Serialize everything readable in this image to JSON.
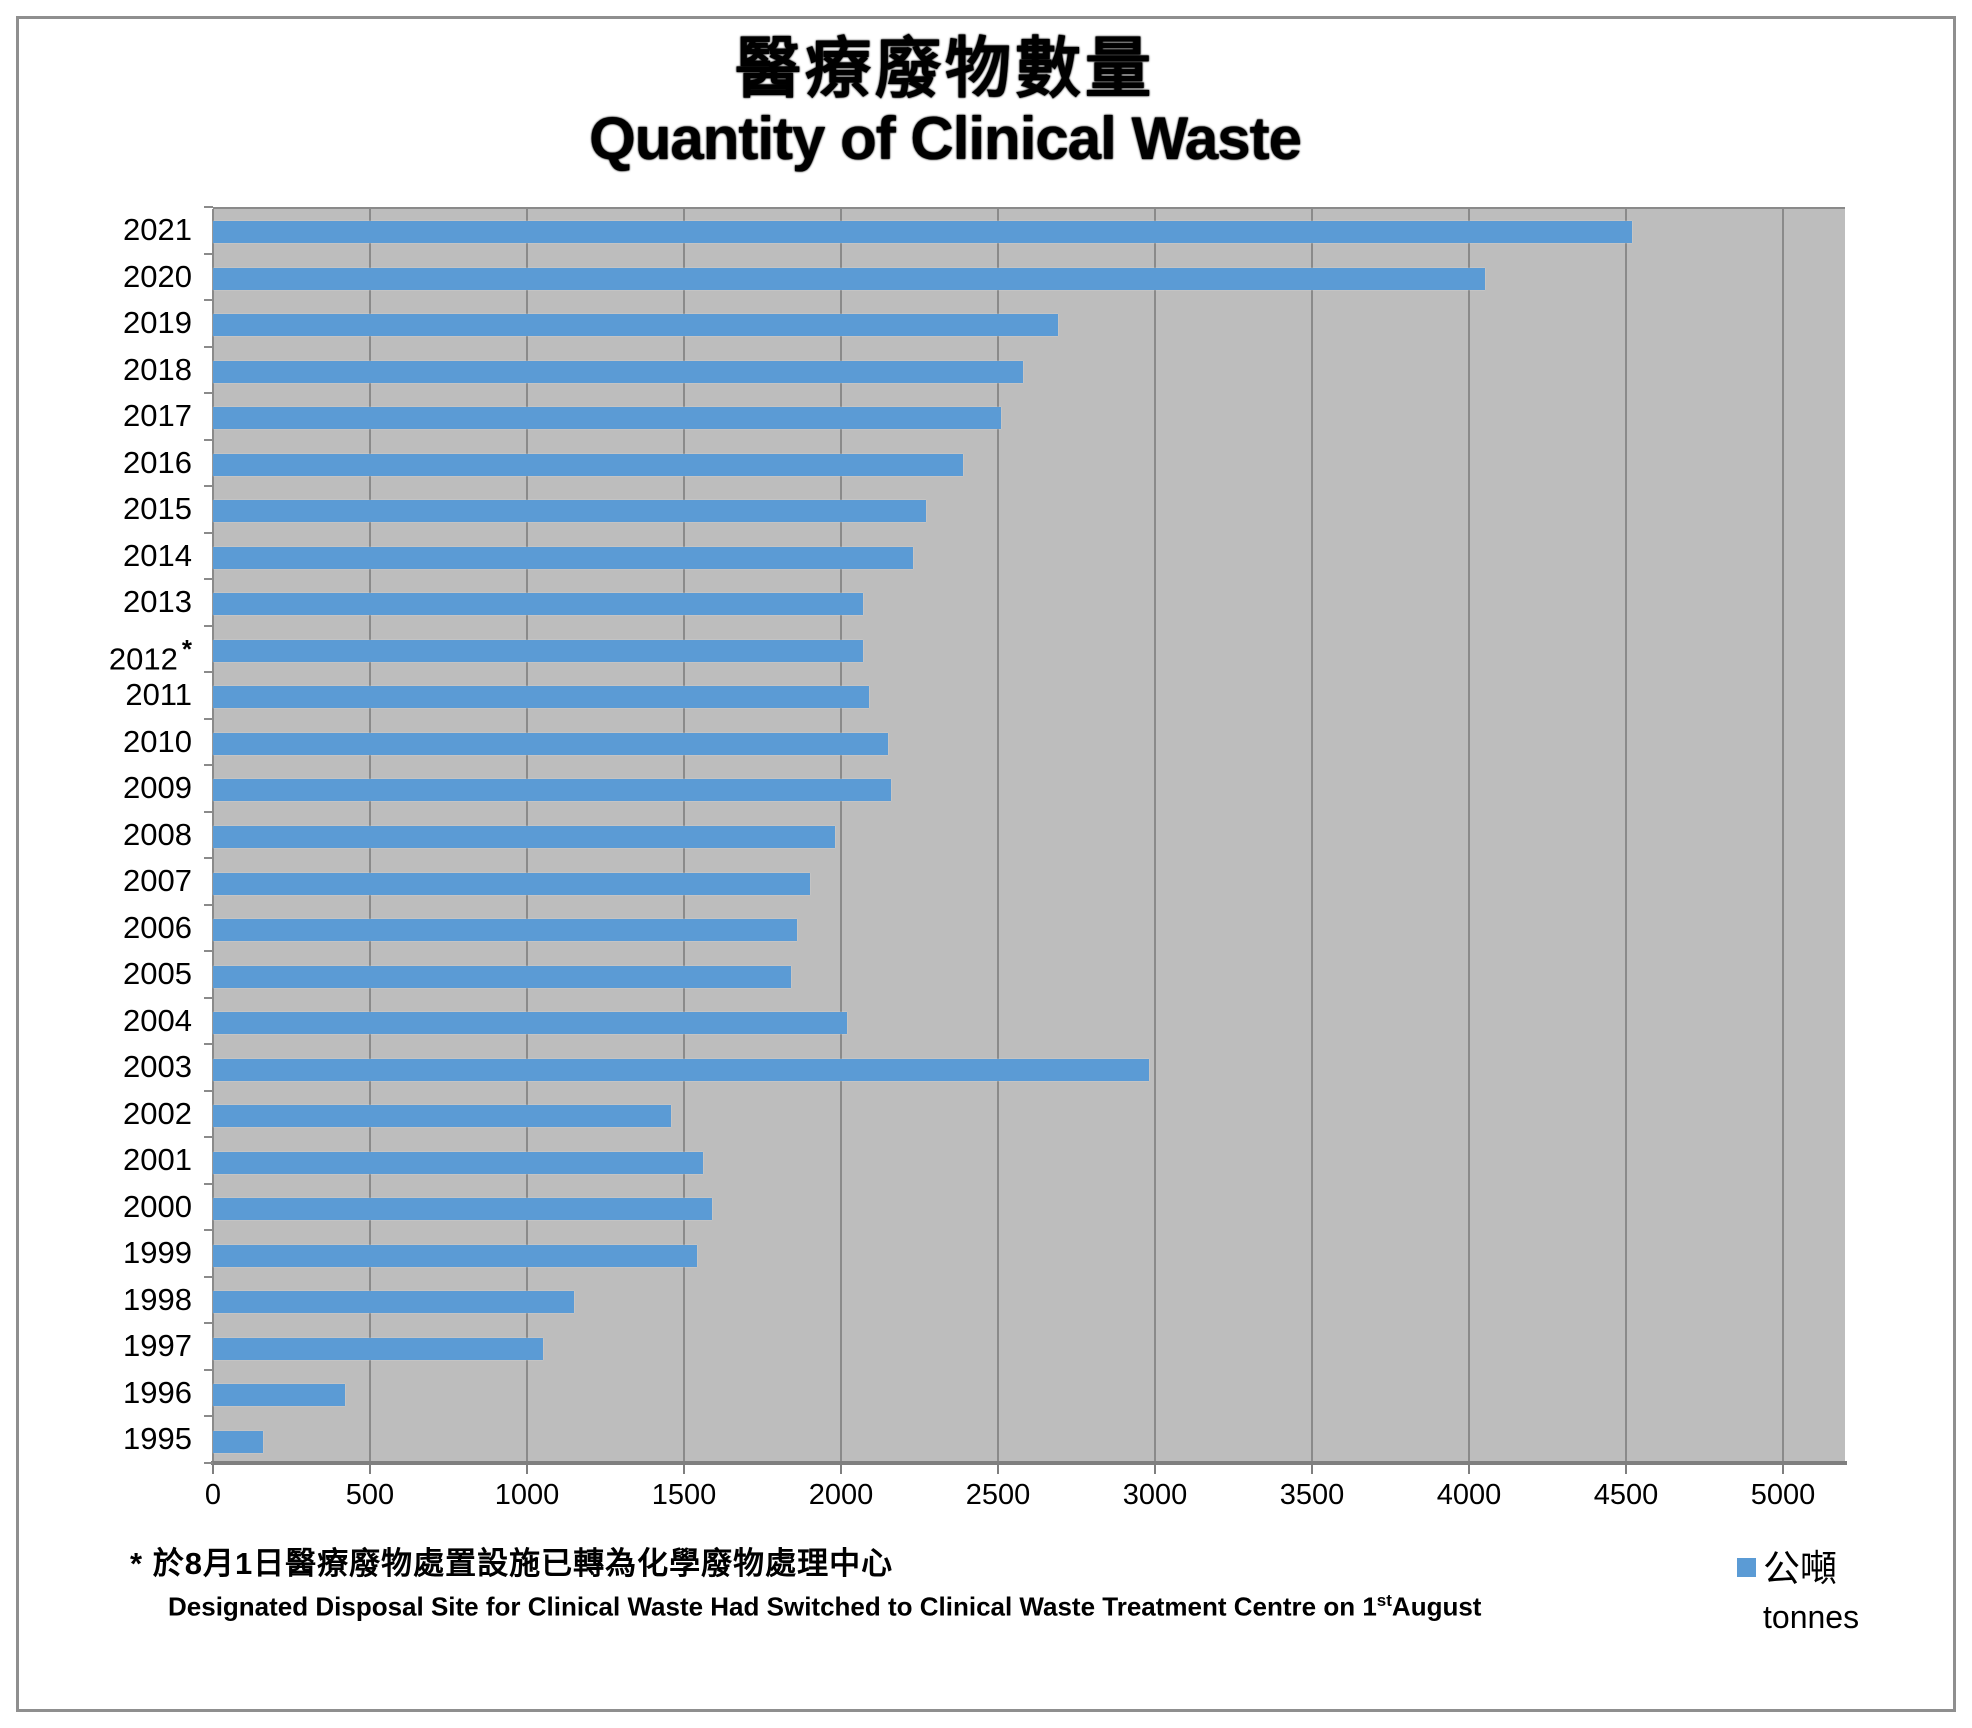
{
  "title": {
    "line1_zh": "醫療廢物數量",
    "line2_en": "Quantity of Clinical Waste"
  },
  "chart_data": {
    "type": "bar",
    "orientation": "horizontal",
    "title": "醫療廢物數量 Quantity of Clinical Waste",
    "categories": [
      "2021",
      "2020",
      "2019",
      "2018",
      "2017",
      "2016",
      "2015",
      "2014",
      "2013",
      "2012",
      "2011",
      "2010",
      "2009",
      "2008",
      "2007",
      "2006",
      "2005",
      "2004",
      "2003",
      "2002",
      "2001",
      "2000",
      "1999",
      "1998",
      "1997",
      "1996",
      "1995"
    ],
    "values": [
      4520,
      4050,
      2690,
      2580,
      2510,
      2390,
      2270,
      2230,
      2070,
      2070,
      2090,
      2150,
      2160,
      1980,
      1900,
      1860,
      1840,
      2020,
      2980,
      1460,
      1560,
      1590,
      1540,
      1150,
      1050,
      420,
      160
    ],
    "starred_category": "2012",
    "star_marker": "*",
    "x_axis": {
      "min": 0,
      "max": 5000,
      "tick_interval": 500,
      "tick_labels": [
        "0",
        "500",
        "1000",
        "1500",
        "2000",
        "2500",
        "3000",
        "3500",
        "4000",
        "4500",
        "5000"
      ]
    },
    "grid": true,
    "legend_position": "bottom-right",
    "bar_color": "#5B9BD5",
    "plot_background": "#BDBDBD",
    "gridline_color": "#8A8A8A"
  },
  "legend": {
    "label_zh": "公噸",
    "label_en": "tonnes"
  },
  "footnote": {
    "marker": "*",
    "line1_zh": "於8月1日醫療廢物處置設施已轉為化學廢物處理中心",
    "line2_prefix": "Designated Disposal Site for Clinical Waste Had Switched to Clinical Waste Treatment Centre on 1",
    "line2_superscript": "st",
    "line2_suffix": "August"
  }
}
